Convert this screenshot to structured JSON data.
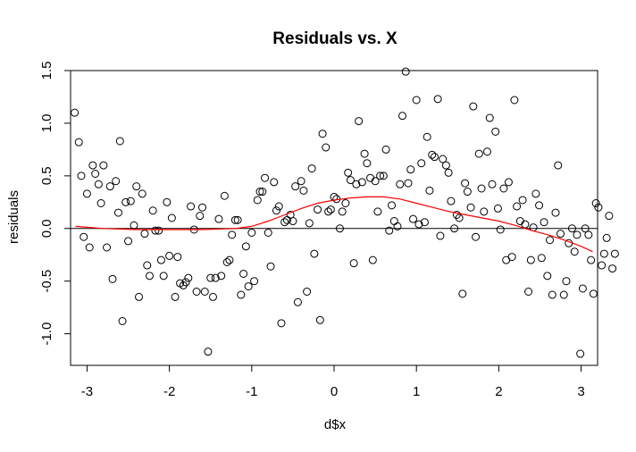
{
  "chart_data": {
    "type": "scatter",
    "title": "Residuals vs. X",
    "xlabel": "d$x",
    "ylabel": "residuals",
    "xlim": [
      -3.2,
      3.2
    ],
    "ylim": [
      -1.3,
      1.5
    ],
    "xticks": [
      -3,
      -2,
      -1,
      0,
      1,
      2,
      3
    ],
    "yticks": [
      -1.0,
      -0.5,
      0.0,
      0.5,
      1.0,
      1.5
    ],
    "xtick_labels": [
      "-3",
      "-2",
      "-1",
      "0",
      "1",
      "2",
      "3"
    ],
    "ytick_labels": [
      "-1.0",
      "-0.5",
      "0.0",
      "0.5",
      "1.0",
      "1.5"
    ],
    "reference_line": {
      "y": 0,
      "color": "#000000"
    },
    "grid": false,
    "points_color": "#000000",
    "smooth_color": "#ff0000",
    "points": [
      [
        -3.15,
        1.1
      ],
      [
        -3.1,
        0.82
      ],
      [
        -3.07,
        0.5
      ],
      [
        -3.04,
        -0.08
      ],
      [
        -3.0,
        0.33
      ],
      [
        -2.97,
        -0.18
      ],
      [
        -2.93,
        0.6
      ],
      [
        -2.9,
        0.52
      ],
      [
        -2.86,
        0.42
      ],
      [
        -2.83,
        0.24
      ],
      [
        -2.8,
        0.6
      ],
      [
        -2.76,
        -0.18
      ],
      [
        -2.72,
        0.4
      ],
      [
        -2.69,
        -0.48
      ],
      [
        -2.65,
        0.45
      ],
      [
        -2.62,
        0.15
      ],
      [
        -2.6,
        0.83
      ],
      [
        -2.57,
        -0.88
      ],
      [
        -2.53,
        0.25
      ],
      [
        -2.5,
        -0.12
      ],
      [
        -2.47,
        0.26
      ],
      [
        -2.43,
        0.03
      ],
      [
        -2.4,
        0.4
      ],
      [
        -2.37,
        -0.65
      ],
      [
        -2.33,
        0.33
      ],
      [
        -2.3,
        -0.05
      ],
      [
        -2.27,
        -0.35
      ],
      [
        -2.24,
        -0.45
      ],
      [
        -2.2,
        0.17
      ],
      [
        -2.17,
        -0.02
      ],
      [
        -2.13,
        -0.02
      ],
      [
        -2.1,
        -0.3
      ],
      [
        -2.07,
        -0.45
      ],
      [
        -2.03,
        0.25
      ],
      [
        -2.0,
        -0.26
      ],
      [
        -1.97,
        0.1
      ],
      [
        -1.93,
        -0.65
      ],
      [
        -1.9,
        -0.27
      ],
      [
        -1.87,
        -0.52
      ],
      [
        -1.83,
        -0.54
      ],
      [
        -1.8,
        -0.51
      ],
      [
        -1.77,
        -0.47
      ],
      [
        -1.74,
        0.21
      ],
      [
        -1.7,
        -0.01
      ],
      [
        -1.67,
        -0.6
      ],
      [
        -1.63,
        0.12
      ],
      [
        -1.6,
        0.2
      ],
      [
        -1.57,
        -0.6
      ],
      [
        -1.53,
        -1.17
      ],
      [
        -1.5,
        -0.47
      ],
      [
        -1.47,
        -0.65
      ],
      [
        -1.44,
        -0.47
      ],
      [
        -1.4,
        0.09
      ],
      [
        -1.37,
        -0.45
      ],
      [
        -1.33,
        0.31
      ],
      [
        -1.3,
        -0.32
      ],
      [
        -1.27,
        -0.3
      ],
      [
        -1.24,
        -0.06
      ],
      [
        -1.2,
        0.08
      ],
      [
        -1.17,
        0.08
      ],
      [
        -1.13,
        -0.63
      ],
      [
        -1.1,
        -0.43
      ],
      [
        -1.07,
        -0.17
      ],
      [
        -1.04,
        -0.55
      ],
      [
        -1.0,
        -0.04
      ],
      [
        -0.97,
        -0.5
      ],
      [
        -0.93,
        0.27
      ],
      [
        -0.9,
        0.35
      ],
      [
        -0.87,
        0.35
      ],
      [
        -0.84,
        0.48
      ],
      [
        -0.8,
        -0.04
      ],
      [
        -0.77,
        -0.36
      ],
      [
        -0.73,
        0.44
      ],
      [
        -0.7,
        0.17
      ],
      [
        -0.67,
        0.21
      ],
      [
        -0.64,
        -0.9
      ],
      [
        -0.6,
        0.06
      ],
      [
        -0.57,
        0.08
      ],
      [
        -0.53,
        0.13
      ],
      [
        -0.5,
        0.07
      ],
      [
        -0.47,
        0.4
      ],
      [
        -0.44,
        -0.7
      ],
      [
        -0.4,
        0.45
      ],
      [
        -0.37,
        0.36
      ],
      [
        -0.33,
        -0.6
      ],
      [
        -0.3,
        0.05
      ],
      [
        -0.27,
        0.57
      ],
      [
        -0.24,
        -0.24
      ],
      [
        -0.2,
        0.18
      ],
      [
        -0.17,
        -0.87
      ],
      [
        -0.14,
        0.9
      ],
      [
        -0.1,
        0.77
      ],
      [
        -0.07,
        0.16
      ],
      [
        -0.04,
        0.18
      ],
      [
        0.0,
        0.3
      ],
      [
        0.03,
        0.28
      ],
      [
        0.07,
        0.0
      ],
      [
        0.1,
        0.16
      ],
      [
        0.14,
        0.24
      ],
      [
        0.17,
        0.53
      ],
      [
        0.2,
        0.46
      ],
      [
        0.24,
        -0.33
      ],
      [
        0.27,
        0.42
      ],
      [
        0.3,
        1.02
      ],
      [
        0.34,
        0.44
      ],
      [
        0.37,
        0.71
      ],
      [
        0.4,
        0.62
      ],
      [
        0.44,
        0.48
      ],
      [
        0.47,
        -0.3
      ],
      [
        0.5,
        0.45
      ],
      [
        0.53,
        0.16
      ],
      [
        0.56,
        0.5
      ],
      [
        0.6,
        0.5
      ],
      [
        0.63,
        0.75
      ],
      [
        0.67,
        -0.02
      ],
      [
        0.7,
        0.22
      ],
      [
        0.73,
        0.07
      ],
      [
        0.77,
        0.02
      ],
      [
        0.8,
        0.42
      ],
      [
        0.83,
        1.07
      ],
      [
        0.87,
        1.49
      ],
      [
        0.9,
        0.43
      ],
      [
        0.93,
        0.56
      ],
      [
        0.96,
        0.09
      ],
      [
        1.0,
        1.22
      ],
      [
        1.03,
        0.04
      ],
      [
        1.06,
        0.62
      ],
      [
        1.1,
        0.06
      ],
      [
        1.13,
        0.87
      ],
      [
        1.16,
        0.36
      ],
      [
        1.19,
        0.7
      ],
      [
        1.22,
        0.68
      ],
      [
        1.26,
        1.23
      ],
      [
        1.29,
        -0.07
      ],
      [
        1.32,
        0.66
      ],
      [
        1.36,
        0.6
      ],
      [
        1.39,
        0.53
      ],
      [
        1.42,
        0.26
      ],
      [
        1.46,
        0.0
      ],
      [
        1.49,
        0.13
      ],
      [
        1.52,
        0.1
      ],
      [
        1.56,
        -0.62
      ],
      [
        1.59,
        0.43
      ],
      [
        1.62,
        0.35
      ],
      [
        1.66,
        0.2
      ],
      [
        1.69,
        1.16
      ],
      [
        1.72,
        -0.08
      ],
      [
        1.76,
        0.71
      ],
      [
        1.79,
        0.38
      ],
      [
        1.82,
        0.16
      ],
      [
        1.86,
        0.73
      ],
      [
        1.89,
        1.05
      ],
      [
        1.92,
        0.42
      ],
      [
        1.96,
        0.92
      ],
      [
        1.99,
        0.19
      ],
      [
        2.02,
        -0.01
      ],
      [
        2.06,
        0.38
      ],
      [
        2.09,
        -0.3
      ],
      [
        2.12,
        0.44
      ],
      [
        2.16,
        -0.27
      ],
      [
        2.19,
        1.22
      ],
      [
        2.22,
        0.21
      ],
      [
        2.26,
        0.07
      ],
      [
        2.29,
        0.27
      ],
      [
        2.32,
        0.04
      ],
      [
        2.36,
        -0.6
      ],
      [
        2.39,
        -0.3
      ],
      [
        2.42,
        0.01
      ],
      [
        2.45,
        0.33
      ],
      [
        2.49,
        0.22
      ],
      [
        2.52,
        -0.28
      ],
      [
        2.55,
        0.06
      ],
      [
        2.59,
        -0.45
      ],
      [
        2.62,
        -0.11
      ],
      [
        2.65,
        -0.63
      ],
      [
        2.69,
        0.15
      ],
      [
        2.72,
        0.6
      ],
      [
        2.75,
        -0.05
      ],
      [
        2.79,
        -0.63
      ],
      [
        2.82,
        -0.5
      ],
      [
        2.85,
        -0.14
      ],
      [
        2.89,
        0.0
      ],
      [
        2.92,
        -0.22
      ],
      [
        2.95,
        -0.06
      ],
      [
        2.99,
        -1.19
      ],
      [
        3.02,
        -0.57
      ],
      [
        3.05,
        0.0
      ],
      [
        3.09,
        -0.06
      ],
      [
        3.12,
        -0.3
      ],
      [
        3.15,
        -0.62
      ],
      [
        3.18,
        0.24
      ],
      [
        3.21,
        0.2
      ],
      [
        3.25,
        -0.35
      ],
      [
        3.28,
        -0.24
      ],
      [
        3.31,
        -0.09
      ],
      [
        3.34,
        0.12
      ],
      [
        3.38,
        -0.38
      ],
      [
        3.41,
        -0.24
      ]
    ],
    "smooth_line": [
      [
        -3.14,
        0.02
      ],
      [
        -2.8,
        0.0
      ],
      [
        -2.4,
        -0.01
      ],
      [
        -2.0,
        -0.01
      ],
      [
        -1.6,
        -0.01
      ],
      [
        -1.2,
        0.0
      ],
      [
        -1.0,
        0.02
      ],
      [
        -0.8,
        0.07
      ],
      [
        -0.6,
        0.13
      ],
      [
        -0.4,
        0.19
      ],
      [
        -0.2,
        0.24
      ],
      [
        0.0,
        0.27
      ],
      [
        0.2,
        0.29
      ],
      [
        0.4,
        0.3
      ],
      [
        0.6,
        0.3
      ],
      [
        0.8,
        0.28
      ],
      [
        1.0,
        0.24
      ],
      [
        1.2,
        0.2
      ],
      [
        1.4,
        0.16
      ],
      [
        1.6,
        0.13
      ],
      [
        1.8,
        0.1
      ],
      [
        2.0,
        0.07
      ],
      [
        2.2,
        0.03
      ],
      [
        2.4,
        -0.02
      ],
      [
        2.6,
        -0.06
      ],
      [
        2.8,
        -0.11
      ],
      [
        3.0,
        -0.17
      ],
      [
        3.14,
        -0.22
      ]
    ]
  }
}
